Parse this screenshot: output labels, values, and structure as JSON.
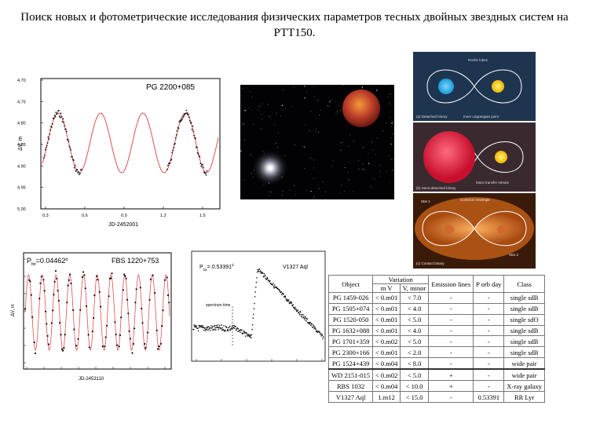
{
  "title": "Поиск новых и фотометрические исследования физических параметров тесных двойных звездных систем на РТТ150.",
  "plots": {
    "pg2200": {
      "label": "PG 2200+085",
      "xlabel": "JD-2452001",
      "ylabel": "ΔV, m",
      "xticks": [
        "0.3",
        "0.6",
        "0.9",
        "1.2",
        "1.5"
      ],
      "yticks": [
        "4.70",
        "4.75",
        "4.80",
        "4.85",
        "4.90",
        "4.95",
        "5.00"
      ]
    },
    "fbs1220": {
      "period_label": "P",
      "period_sub": "fot",
      "period_value": "=0.04462",
      "period_unit": "d",
      "label": "FBS 1220+753",
      "xlabel": "JD-2453110",
      "ylabel": "ΔV, m"
    },
    "v1327": {
      "period_label": "P",
      "period_sub": "fot",
      "period_value": "= 0.53391",
      "period_unit": "d",
      "label": "V1327 Aql",
      "annotation": "spectrum time"
    }
  },
  "illustration_labels": {
    "roche": "Roche lobes",
    "detached": "(a) Detached binary",
    "lagrange": "Inner Lagrangian point",
    "semi_detached": "(b) Semi-detached binary",
    "mass_transfer": "Mass transfer stream",
    "common_envelope": "Common envelope",
    "star1": "Star 1",
    "star2": "Star 2",
    "contact": "(c) Contact binary"
  },
  "table": {
    "headers": {
      "object": "Object",
      "variation": "Variation",
      "mv": "m V",
      "vmin": "V, minor",
      "emission": "Emission lines",
      "porb": "P orb day",
      "class": "Class"
    },
    "rows": [
      {
        "object": "PG 1459-026",
        "mv": "< 0.m01",
        "vm": "< 7.0",
        "em": "-",
        "porb": "-",
        "cls": "single sdB"
      },
      {
        "object": "PG 1505+074",
        "mv": "< 0.m01",
        "vm": "< 4.0",
        "em": "-",
        "porb": "-",
        "cls": "single sdB"
      },
      {
        "object": "PG 1520-050",
        "mv": "< 0.m01",
        "vm": "< 5.0",
        "em": "-",
        "porb": "-",
        "cls": "single sdO"
      },
      {
        "object": "PG 1632+088",
        "mv": "< 0.m01",
        "vm": "< 4.0",
        "em": "-",
        "porb": "-",
        "cls": "single sdB"
      },
      {
        "object": "PG 1701+359",
        "mv": "< 0.m02",
        "vm": "< 5.0",
        "em": "-",
        "porb": "-",
        "cls": "single sdB"
      },
      {
        "object": "PG 2300+166",
        "mv": "< 0.m01",
        "vm": "< 2.0",
        "em": "-",
        "porb": "-",
        "cls": "single sdB"
      },
      {
        "object": "PG 1524+439",
        "mv": "< 0.m04",
        "vm": "< 8.0",
        "em": "-",
        "porb": "-",
        "cls": "wide pair"
      },
      {
        "object": "WD 2151-015",
        "mv": "< 0.m02",
        "vm": "< 5.0",
        "em": "+",
        "porb": "-",
        "cls": "wide pair"
      },
      {
        "object": "RBS 1032",
        "mv": "< 0.m04",
        "vm": "< 10.0",
        "em": "+",
        "porb": "-",
        "cls": "X-ray galaxy"
      },
      {
        "object": "V1327 Aql",
        "mv": "1.m12",
        "vm": "< 15.0",
        "em": "-",
        "porb": "0.53391",
        "cls": "RR Lyr"
      }
    ]
  },
  "colors": {
    "fit": "#e05050",
    "points": "#111111",
    "detached_bg": "#1e3550",
    "semi_bg": "#3a2a30",
    "contact_bg": "#3a1a08"
  }
}
